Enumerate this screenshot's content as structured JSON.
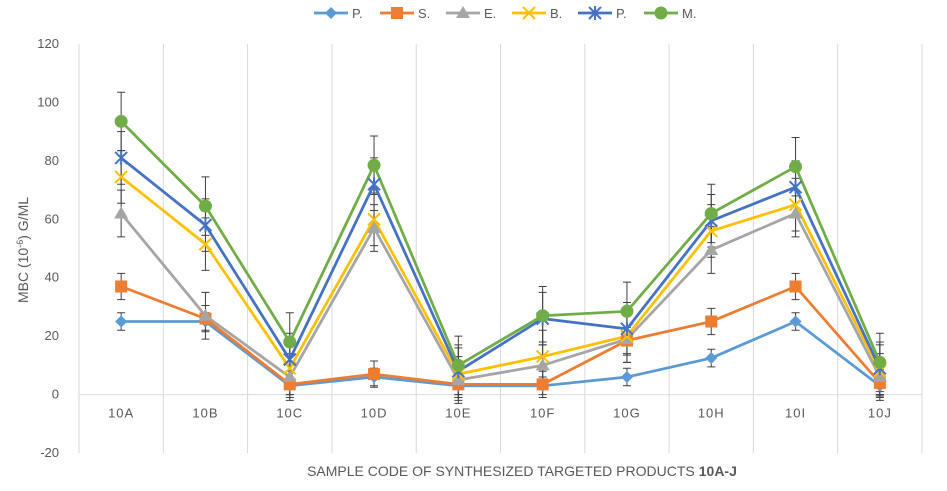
{
  "chart_data": {
    "type": "line",
    "title": "",
    "xlabel": "SAMPLE CODE OF SYNTHESIZED TARGETED  PRODUCTS",
    "xlabel_bold": "10A-J",
    "ylabel_prefix": "MBC (10",
    "ylabel_sup": "-6",
    "ylabel_suffix": ") G/ML",
    "ylim": [
      -20,
      120
    ],
    "yticks": [
      -20,
      0,
      20,
      40,
      60,
      80,
      100,
      120
    ],
    "ytick_labels": [
      "-20",
      "0",
      "20",
      "40",
      "60",
      "80",
      "100",
      "120"
    ],
    "grid": "vertical",
    "legend_position": "top",
    "categories": [
      "10A",
      "10B",
      "10C",
      "10D",
      "10E",
      "10F",
      "10G",
      "10H",
      "10I",
      "10J"
    ],
    "series": [
      {
        "name": "P.",
        "color": "#5B9BD5",
        "marker": "diamond",
        "values": [
          25,
          25,
          3,
          6,
          3,
          3,
          6,
          12.5,
          25,
          3
        ],
        "errors": [
          3,
          3,
          3,
          3,
          3,
          3,
          3,
          3,
          3,
          3
        ]
      },
      {
        "name": "S.",
        "color": "#ED7D31",
        "marker": "square",
        "values": [
          37,
          26,
          3.5,
          7,
          3.5,
          3.5,
          18.5,
          25,
          37,
          4
        ],
        "errors": [
          4.5,
          4.5,
          4.5,
          4.5,
          4.5,
          4.5,
          4.5,
          4.5,
          4.5,
          4.5
        ]
      },
      {
        "name": "E.",
        "color": "#A5A5A5",
        "marker": "triangle",
        "values": [
          62,
          27,
          6,
          57,
          5,
          10,
          19,
          49.5,
          62,
          6
        ],
        "errors": [
          8,
          8,
          8,
          8,
          8,
          8,
          8,
          8,
          8,
          8
        ]
      },
      {
        "name": "B.",
        "color": "#FFC000",
        "marker": "x",
        "values": [
          74.5,
          51.5,
          9,
          60,
          7,
          13,
          20,
          56,
          65,
          8
        ],
        "errors": [
          9,
          9,
          9,
          9,
          9,
          9,
          9,
          9,
          9,
          9
        ]
      },
      {
        "name": "P.",
        "color": "#4472C4",
        "marker": "star",
        "values": [
          81,
          58,
          12,
          72,
          8,
          26,
          22.5,
          59.5,
          71,
          9
        ],
        "errors": [
          9,
          9,
          9,
          9,
          9,
          9,
          9,
          9,
          9,
          9
        ]
      },
      {
        "name": "M.",
        "color": "#70AD47",
        "marker": "circle",
        "values": [
          93.5,
          64.5,
          18,
          78.5,
          10,
          27,
          28.5,
          62,
          78,
          11
        ],
        "errors": [
          10,
          10,
          10,
          10,
          10,
          10,
          10,
          10,
          10,
          10
        ]
      }
    ]
  }
}
